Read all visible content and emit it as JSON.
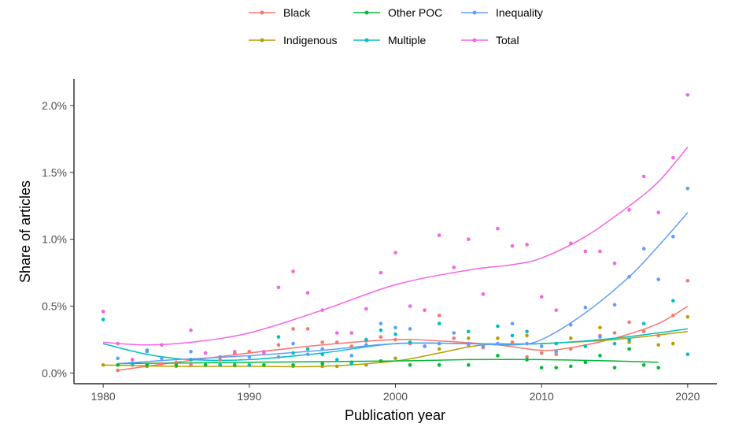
{
  "chart_data": {
    "type": "scatter",
    "xlabel": "Publication year",
    "ylabel": "Share of articles",
    "xlim": [
      1978,
      2022
    ],
    "ylim": [
      -0.08,
      2.2
    ],
    "x_ticks": [
      1980,
      1990,
      2000,
      2010,
      2020
    ],
    "y_ticks": [
      0.0,
      0.5,
      1.0,
      1.5,
      2.0
    ],
    "y_tick_labels": [
      "0.0%",
      "0.5%",
      "1.0%",
      "1.5%",
      "2.0%"
    ],
    "y_unit": "%",
    "grid": false,
    "legend_position": "top",
    "overlay": "smoothed trend line per series",
    "series": [
      {
        "name": "Black",
        "color": "#F8766D",
        "points": [
          [
            1981,
            0.02
          ],
          [
            1982,
            0.06
          ],
          [
            1983,
            0.05
          ],
          [
            1984,
            0.07
          ],
          [
            1985,
            0.08
          ],
          [
            1986,
            0.06
          ],
          [
            1987,
            0.15
          ],
          [
            1988,
            0.1
          ],
          [
            1989,
            0.15
          ],
          [
            1990,
            0.16
          ],
          [
            1991,
            0.15
          ],
          [
            1992,
            0.21
          ],
          [
            1993,
            0.33
          ],
          [
            1994,
            0.33
          ],
          [
            1995,
            0.23
          ],
          [
            1996,
            0.23
          ],
          [
            1997,
            0.2
          ],
          [
            1998,
            0.24
          ],
          [
            1999,
            0.27
          ],
          [
            2000,
            0.25
          ],
          [
            2001,
            0.22
          ],
          [
            2002,
            0.2
          ],
          [
            2003,
            0.43
          ],
          [
            2004,
            0.26
          ],
          [
            2005,
            0.21
          ],
          [
            2006,
            0.19
          ],
          [
            2007,
            0.22
          ],
          [
            2008,
            0.23
          ],
          [
            2009,
            0.12
          ],
          [
            2010,
            0.15
          ],
          [
            2011,
            0.14
          ],
          [
            2012,
            0.18
          ],
          [
            2013,
            0.2
          ],
          [
            2014,
            0.28
          ],
          [
            2015,
            0.3
          ],
          [
            2016,
            0.38
          ],
          [
            2017,
            0.31
          ],
          [
            2018,
            0.28
          ],
          [
            2019,
            0.43
          ],
          [
            2020,
            0.69
          ]
        ],
        "trend": [
          [
            1981,
            0.02
          ],
          [
            1985,
            0.08
          ],
          [
            1990,
            0.15
          ],
          [
            1995,
            0.21
          ],
          [
            2000,
            0.25
          ],
          [
            2003,
            0.24
          ],
          [
            2007,
            0.21
          ],
          [
            2010,
            0.17
          ],
          [
            2012,
            0.19
          ],
          [
            2015,
            0.26
          ],
          [
            2018,
            0.37
          ],
          [
            2020,
            0.5
          ]
        ]
      },
      {
        "name": "Indigenous",
        "color": "#B79F00",
        "points": [
          [
            1980,
            0.06
          ],
          [
            1981,
            0.06
          ],
          [
            1983,
            0.05
          ],
          [
            1985,
            0.05
          ],
          [
            1988,
            0.06
          ],
          [
            1990,
            0.06
          ],
          [
            1993,
            0.05
          ],
          [
            1995,
            0.05
          ],
          [
            1996,
            0.05
          ],
          [
            1998,
            0.06
          ],
          [
            2000,
            0.11
          ],
          [
            2003,
            0.18
          ],
          [
            2005,
            0.26
          ],
          [
            2007,
            0.26
          ],
          [
            2009,
            0.28
          ],
          [
            2012,
            0.26
          ],
          [
            2014,
            0.34
          ],
          [
            2016,
            0.23
          ],
          [
            2018,
            0.21
          ],
          [
            2019,
            0.22
          ],
          [
            2020,
            0.42
          ]
        ],
        "trend": [
          [
            1980,
            0.06
          ],
          [
            1985,
            0.05
          ],
          [
            1990,
            0.05
          ],
          [
            1995,
            0.05
          ],
          [
            2000,
            0.09
          ],
          [
            2003,
            0.15
          ],
          [
            2006,
            0.21
          ],
          [
            2010,
            0.22
          ],
          [
            2015,
            0.25
          ],
          [
            2020,
            0.31
          ]
        ]
      },
      {
        "name": "Other POC",
        "color": "#00BA38",
        "points": [
          [
            1981,
            0.06
          ],
          [
            1983,
            0.06
          ],
          [
            1985,
            0.06
          ],
          [
            1987,
            0.06
          ],
          [
            1989,
            0.06
          ],
          [
            1991,
            0.06
          ],
          [
            1993,
            0.06
          ],
          [
            1995,
            0.07
          ],
          [
            1997,
            0.08
          ],
          [
            1999,
            0.09
          ],
          [
            2001,
            0.06
          ],
          [
            2003,
            0.06
          ],
          [
            2005,
            0.06
          ],
          [
            2007,
            0.13
          ],
          [
            2009,
            0.1
          ],
          [
            2010,
            0.04
          ],
          [
            2011,
            0.04
          ],
          [
            2012,
            0.05
          ],
          [
            2013,
            0.08
          ],
          [
            2014,
            0.13
          ],
          [
            2015,
            0.04
          ],
          [
            2016,
            0.18
          ],
          [
            2017,
            0.06
          ],
          [
            2018,
            0.04
          ]
        ],
        "trend": [
          [
            1981,
            0.07
          ],
          [
            1990,
            0.08
          ],
          [
            2000,
            0.09
          ],
          [
            2005,
            0.1
          ],
          [
            2010,
            0.1
          ],
          [
            2015,
            0.09
          ],
          [
            2018,
            0.08
          ]
        ]
      },
      {
        "name": "Multiple",
        "color": "#00BFC4",
        "points": [
          [
            1980,
            0.4
          ],
          [
            1982,
            0.07
          ],
          [
            1983,
            0.17
          ],
          [
            1986,
            0.1
          ],
          [
            1988,
            0.06
          ],
          [
            1990,
            0.06
          ],
          [
            1992,
            0.27
          ],
          [
            1993,
            0.15
          ],
          [
            1994,
            0.18
          ],
          [
            1995,
            0.14
          ],
          [
            1996,
            0.1
          ],
          [
            1997,
            0.07
          ],
          [
            1998,
            0.25
          ],
          [
            1999,
            0.32
          ],
          [
            2000,
            0.29
          ],
          [
            2001,
            0.23
          ],
          [
            2003,
            0.37
          ],
          [
            2005,
            0.31
          ],
          [
            2007,
            0.35
          ],
          [
            2008,
            0.28
          ],
          [
            2009,
            0.31
          ],
          [
            2011,
            0.22
          ],
          [
            2013,
            0.2
          ],
          [
            2015,
            0.22
          ],
          [
            2016,
            0.25
          ],
          [
            2017,
            0.37
          ],
          [
            2019,
            0.54
          ],
          [
            2020,
            0.14
          ]
        ],
        "trend": [
          [
            1980,
            0.22
          ],
          [
            1983,
            0.14
          ],
          [
            1986,
            0.1
          ],
          [
            1990,
            0.1
          ],
          [
            1995,
            0.15
          ],
          [
            2000,
            0.22
          ],
          [
            2005,
            0.22
          ],
          [
            2010,
            0.22
          ],
          [
            2015,
            0.26
          ],
          [
            2020,
            0.33
          ]
        ]
      },
      {
        "name": "Inequality",
        "color": "#619CFF",
        "points": [
          [
            1981,
            0.11
          ],
          [
            1982,
            0.1
          ],
          [
            1983,
            0.16
          ],
          [
            1984,
            0.11
          ],
          [
            1986,
            0.16
          ],
          [
            1988,
            0.12
          ],
          [
            1990,
            0.12
          ],
          [
            1992,
            0.12
          ],
          [
            1993,
            0.22
          ],
          [
            1994,
            0.14
          ],
          [
            1995,
            0.18
          ],
          [
            1997,
            0.13
          ],
          [
            1998,
            0.21
          ],
          [
            1999,
            0.37
          ],
          [
            2000,
            0.34
          ],
          [
            2001,
            0.33
          ],
          [
            2002,
            0.2
          ],
          [
            2003,
            0.22
          ],
          [
            2004,
            0.3
          ],
          [
            2005,
            0.22
          ],
          [
            2006,
            0.2
          ],
          [
            2007,
            0.22
          ],
          [
            2008,
            0.37
          ],
          [
            2009,
            0.22
          ],
          [
            2010,
            0.2
          ],
          [
            2011,
            0.16
          ],
          [
            2012,
            0.36
          ],
          [
            2013,
            0.49
          ],
          [
            2014,
            0.27
          ],
          [
            2015,
            0.51
          ],
          [
            2016,
            0.72
          ],
          [
            2017,
            0.93
          ],
          [
            2018,
            0.7
          ],
          [
            2019,
            1.02
          ],
          [
            2020,
            1.38
          ]
        ],
        "trend": [
          [
            1981,
            0.07
          ],
          [
            1985,
            0.1
          ],
          [
            1990,
            0.13
          ],
          [
            1995,
            0.17
          ],
          [
            2000,
            0.22
          ],
          [
            2005,
            0.22
          ],
          [
            2008,
            0.21
          ],
          [
            2010,
            0.25
          ],
          [
            2013,
            0.45
          ],
          [
            2016,
            0.72
          ],
          [
            2018,
            0.95
          ],
          [
            2020,
            1.2
          ]
        ]
      },
      {
        "name": "Total",
        "color": "#F564E3",
        "points": [
          [
            1980,
            0.46
          ],
          [
            1981,
            0.22
          ],
          [
            1982,
            0.1
          ],
          [
            1984,
            0.21
          ],
          [
            1986,
            0.32
          ],
          [
            1987,
            0.15
          ],
          [
            1989,
            0.16
          ],
          [
            1991,
            0.16
          ],
          [
            1992,
            0.64
          ],
          [
            1993,
            0.76
          ],
          [
            1994,
            0.6
          ],
          [
            1995,
            0.47
          ],
          [
            1996,
            0.3
          ],
          [
            1997,
            0.3
          ],
          [
            1998,
            0.48
          ],
          [
            1999,
            0.75
          ],
          [
            2000,
            0.9
          ],
          [
            2001,
            0.5
          ],
          [
            2002,
            0.47
          ],
          [
            2003,
            1.03
          ],
          [
            2004,
            0.79
          ],
          [
            2005,
            1.0
          ],
          [
            2006,
            0.59
          ],
          [
            2007,
            1.08
          ],
          [
            2008,
            0.95
          ],
          [
            2009,
            0.96
          ],
          [
            2010,
            0.57
          ],
          [
            2011,
            0.47
          ],
          [
            2012,
            0.97
          ],
          [
            2013,
            0.91
          ],
          [
            2014,
            0.91
          ],
          [
            2015,
            0.82
          ],
          [
            2016,
            1.22
          ],
          [
            2017,
            1.47
          ],
          [
            2018,
            1.2
          ],
          [
            2019,
            1.61
          ],
          [
            2020,
            2.08
          ]
        ],
        "trend": [
          [
            1980,
            0.23
          ],
          [
            1983,
            0.21
          ],
          [
            1986,
            0.23
          ],
          [
            1990,
            0.3
          ],
          [
            1995,
            0.47
          ],
          [
            2000,
            0.66
          ],
          [
            2005,
            0.77
          ],
          [
            2008,
            0.81
          ],
          [
            2010,
            0.86
          ],
          [
            2013,
            1.02
          ],
          [
            2016,
            1.25
          ],
          [
            2018,
            1.43
          ],
          [
            2020,
            1.69
          ]
        ]
      }
    ]
  }
}
